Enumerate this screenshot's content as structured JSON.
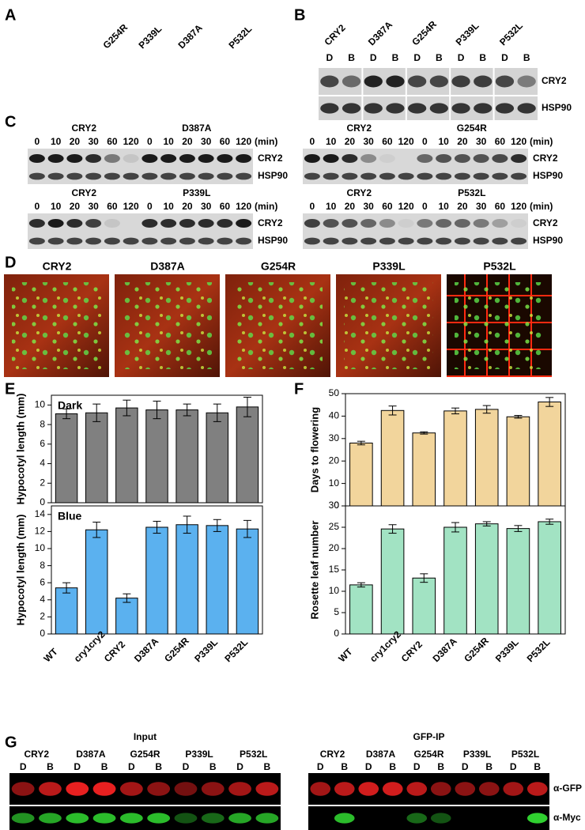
{
  "panels": {
    "A": {
      "label": "A",
      "columns": [
        "G254R",
        "P339L",
        "D387A",
        "P532L"
      ]
    },
    "B": {
      "label": "B",
      "columns": [
        "CRY2",
        "D387A",
        "G254R",
        "P339L",
        "P532L"
      ],
      "conditions": [
        "D",
        "B"
      ],
      "bands": [
        "CRY2",
        "HSP90"
      ]
    },
    "C": {
      "label": "C",
      "times": [
        0,
        10,
        20,
        30,
        60,
        120
      ],
      "unit": "(min)",
      "bands": [
        "CRY2",
        "HSP90"
      ],
      "blots": [
        {
          "columns": [
            "CRY2",
            "D387A"
          ]
        },
        {
          "columns": [
            "CRY2",
            "G254R"
          ]
        },
        {
          "columns": [
            "CRY2",
            "P339L"
          ]
        },
        {
          "columns": [
            "CRY2",
            "P532L"
          ]
        }
      ]
    },
    "D": {
      "label": "D",
      "images": [
        "CRY2",
        "D387A",
        "G254R",
        "P339L",
        "P532L"
      ]
    },
    "E": {
      "label": "E"
    },
    "F": {
      "label": "F"
    },
    "G": {
      "label": "G",
      "columns": [
        "CRY2",
        "D387A",
        "G254R",
        "P339L",
        "P532L"
      ],
      "conditions": [
        "D",
        "B"
      ],
      "groups": [
        "Input",
        "GFP-IP"
      ],
      "bands": [
        "α-GFP",
        "α-Myc"
      ]
    }
  },
  "chart_data": [
    {
      "type": "bar",
      "annotation": "Dark",
      "y_label": "Hypocotyl length (mm)",
      "color": "#808080",
      "values": [
        9.1,
        9.2,
        9.7,
        9.5,
        9.5,
        9.2,
        9.8
      ],
      "errors": [
        0.5,
        0.9,
        0.8,
        0.9,
        0.6,
        0.9,
        1.0
      ],
      "ylim": [
        0,
        11
      ],
      "yticks": [
        0,
        2,
        4,
        6,
        8,
        10
      ]
    },
    {
      "type": "bar",
      "annotation": "Blue",
      "y_label": "Hypocotyl length (mm)",
      "color": "#5bb1ef",
      "categories": [
        "WT",
        "cry1cry2",
        "CRY2",
        "D387A",
        "G254R",
        "P339L",
        "P532L"
      ],
      "values": [
        5.4,
        12.2,
        4.2,
        12.5,
        12.8,
        12.7,
        12.3
      ],
      "errors": [
        0.6,
        0.9,
        0.5,
        0.7,
        1.0,
        0.7,
        1.0
      ],
      "ylim": [
        0,
        15
      ],
      "yticks": [
        0,
        2,
        4,
        6,
        8,
        10,
        12,
        14
      ]
    },
    {
      "type": "bar",
      "y_label": "Days to flowering",
      "color": "#f2d59c",
      "values": [
        28,
        42.5,
        32.5,
        42.3,
        43,
        39.7,
        46.3
      ],
      "errors": [
        0.8,
        2,
        0.5,
        1.3,
        1.7,
        0.6,
        2
      ],
      "ylim": [
        0,
        50
      ],
      "yticks": [
        0,
        10,
        20,
        30,
        40,
        50
      ]
    },
    {
      "type": "bar",
      "y_label": "Rosette leaf number",
      "color": "#a2e3c3",
      "categories": [
        "WT",
        "cry1cry2",
        "CRY2",
        "D387A",
        "G254R",
        "P339L",
        "P532L"
      ],
      "values": [
        11.5,
        24.6,
        13.1,
        25,
        25.8,
        24.7,
        26.3
      ],
      "errors": [
        0.5,
        1,
        1,
        1.1,
        0.5,
        0.7,
        0.6
      ],
      "ylim": [
        0,
        30
      ],
      "yticks": [
        0,
        5,
        10,
        15,
        20,
        25,
        30
      ]
    }
  ]
}
